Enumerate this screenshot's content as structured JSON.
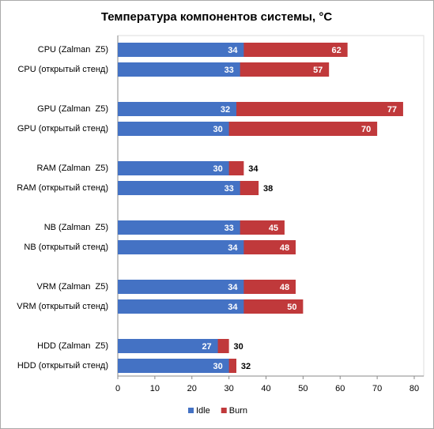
{
  "chart_data": {
    "type": "bar",
    "orientation": "horizontal",
    "overlap": true,
    "title": "Температура компонентов системы, °C",
    "categories": [
      "CPU (Zalman  Z5)",
      "CPU (открытый стенд)",
      "GPU (Zalman  Z5)",
      "GPU (открытый стенд)",
      "RAM (Zalman  Z5)",
      "RAM (открытый стенд)",
      "NB (Zalman  Z5)",
      "NB (открытый стенд)",
      "VRM (Zalman  Z5)",
      "VRM (открытый стенд)",
      "HDD (Zalman  Z5)",
      "HDD (открытый стенд)"
    ],
    "series": [
      {
        "name": "Idle",
        "color": "#4472c4",
        "values": [
          34,
          33,
          32,
          30,
          30,
          33,
          33,
          34,
          34,
          34,
          27,
          30
        ]
      },
      {
        "name": "Burn",
        "color": "#c0393b",
        "values": [
          62,
          57,
          77,
          70,
          34,
          38,
          45,
          48,
          48,
          50,
          30,
          32
        ]
      }
    ],
    "xlim": [
      0,
      80
    ],
    "xticks": [
      0,
      10,
      20,
      30,
      40,
      50,
      60,
      70,
      80
    ],
    "legend": "bottom"
  }
}
